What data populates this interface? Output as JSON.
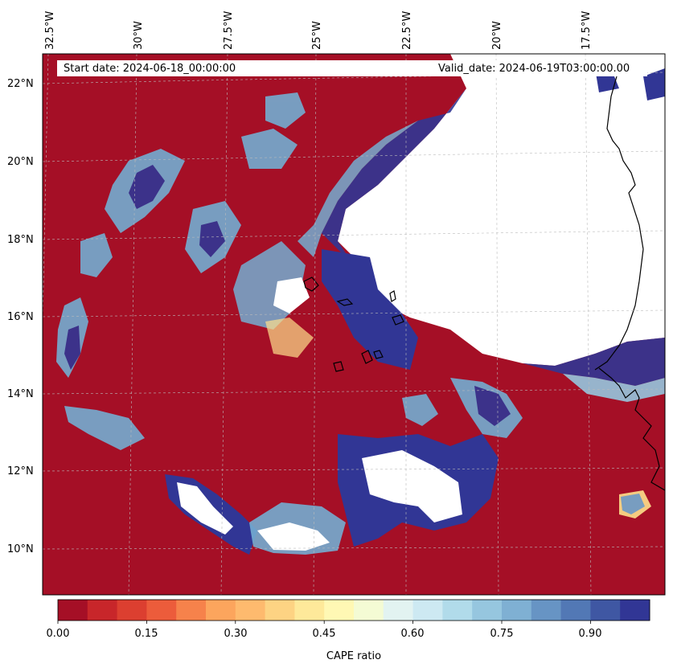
{
  "map": {
    "start_label": "Start date: 2024-06-18_00:00:00",
    "valid_label": "Valid_date: 2024-06-19T03:00:00.00",
    "lon_labels": [
      "32.5°W",
      "30°W",
      "27.5°W",
      "25°W",
      "22.5°W",
      "20°W",
      "17.5°W"
    ],
    "lat_labels": [
      "22°N",
      "20°N",
      "18°N",
      "16°N",
      "14°N",
      "12°N",
      "10°N"
    ],
    "field_colors": {
      "low": "#a50f26",
      "mid_orange": "#f46d43",
      "mid_light": "#fee08b",
      "pale": "#e0f3f8",
      "blue_mid": "#74add1",
      "high": "#313695",
      "masked": "#ffffff",
      "coastline": "#000000"
    }
  },
  "colorbar": {
    "label": "CAPE ratio",
    "tick_labels": [
      "0.00",
      "0.15",
      "0.30",
      "0.45",
      "0.60",
      "0.75",
      "0.90"
    ],
    "colors": [
      "#a50f26",
      "#c8262a",
      "#dc3f30",
      "#ec5c3b",
      "#f6824b",
      "#fca55d",
      "#feba6e",
      "#fdd383",
      "#fee99a",
      "#fff8b4",
      "#f4fbd4",
      "#e2f3f1",
      "#cde9f2",
      "#b1dbea",
      "#96c6df",
      "#7fb0d3",
      "#6794c4",
      "#5278b5",
      "#3f57a3",
      "#313695"
    ]
  }
}
